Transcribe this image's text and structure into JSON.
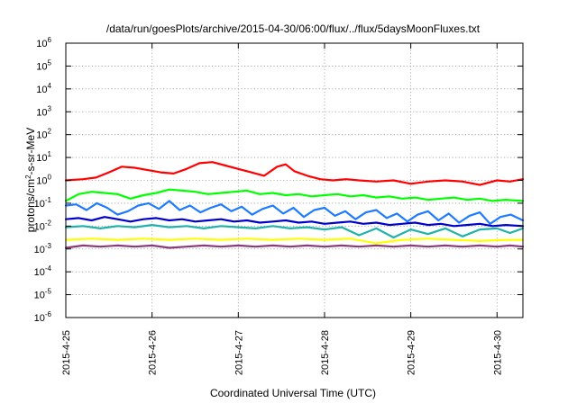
{
  "chart_data": {
    "type": "line",
    "title": "/data/run/goesPlots/archive/2015-04-30/06:00/flux/../flux/5daysMoonFluxes.txt",
    "xlabel": "Coordinated Universal Time (UTC)",
    "ylabel": {
      "prefix": "protons/cm",
      "sup": "2",
      "suffix": "-s-sr-MeV"
    },
    "x_unit": "days",
    "xlim": [
      0,
      5.3
    ],
    "ylim_log10": [
      -6,
      6
    ],
    "y_scale": "log",
    "grid": true,
    "x_ticks": [
      {
        "x": 0,
        "label": "2015-4-25"
      },
      {
        "x": 1,
        "label": "2015-4-26"
      },
      {
        "x": 2,
        "label": "2015-4-27"
      },
      {
        "x": 3,
        "label": "2015-4-28"
      },
      {
        "x": 4,
        "label": "2015-4-29"
      },
      {
        "x": 5,
        "label": "2015-4-30"
      }
    ],
    "y_ticks": [
      {
        "exp": -6,
        "base": "10",
        "sup": "-6"
      },
      {
        "exp": -5,
        "base": "10",
        "sup": "-5"
      },
      {
        "exp": -4,
        "base": "10",
        "sup": "-4"
      },
      {
        "exp": -3,
        "base": "10",
        "sup": "-3"
      },
      {
        "exp": -2,
        "base": "10",
        "sup": "-2"
      },
      {
        "exp": -1,
        "base": "10",
        "sup": "-1"
      },
      {
        "exp": 0,
        "base": "10",
        "sup": "0"
      },
      {
        "exp": 1,
        "base": "10",
        "sup": "1"
      },
      {
        "exp": 2,
        "base": "10",
        "sup": "2"
      },
      {
        "exp": 3,
        "base": "10",
        "sup": "3"
      },
      {
        "exp": 4,
        "base": "10",
        "sup": "4"
      },
      {
        "exp": 5,
        "base": "10",
        "sup": "5"
      },
      {
        "exp": 6,
        "base": "10",
        "sup": "6"
      }
    ],
    "series": [
      {
        "color": "#ff0000",
        "x": [
          0,
          0.2,
          0.35,
          0.5,
          0.65,
          0.8,
          0.95,
          1.1,
          1.25,
          1.4,
          1.55,
          1.7,
          1.85,
          2.0,
          2.15,
          2.3,
          2.45,
          2.55,
          2.65,
          2.8,
          2.95,
          3.1,
          3.25,
          3.4,
          3.6,
          3.8,
          4.0,
          4.2,
          4.4,
          4.6,
          4.8,
          5.0,
          5.15,
          5.3
        ],
        "log10y": [
          0.0,
          0.05,
          0.12,
          0.35,
          0.6,
          0.55,
          0.45,
          0.35,
          0.3,
          0.5,
          0.75,
          0.8,
          0.65,
          0.5,
          0.35,
          0.2,
          0.6,
          0.7,
          0.4,
          0.2,
          0.05,
          0.0,
          0.05,
          0.0,
          -0.05,
          0.0,
          -0.15,
          -0.05,
          0.0,
          -0.05,
          -0.2,
          0.0,
          -0.05,
          0.05
        ]
      },
      {
        "color": "#00ff00",
        "x": [
          0,
          0.15,
          0.3,
          0.45,
          0.6,
          0.75,
          0.9,
          1.05,
          1.2,
          1.35,
          1.5,
          1.65,
          1.8,
          1.95,
          2.1,
          2.25,
          2.4,
          2.55,
          2.7,
          2.85,
          3.0,
          3.15,
          3.3,
          3.45,
          3.6,
          3.75,
          3.9,
          4.05,
          4.2,
          4.35,
          4.5,
          4.65,
          4.8,
          4.95,
          5.1,
          5.3
        ],
        "log10y": [
          -0.9,
          -0.6,
          -0.5,
          -0.55,
          -0.6,
          -0.8,
          -0.65,
          -0.55,
          -0.4,
          -0.45,
          -0.5,
          -0.6,
          -0.55,
          -0.5,
          -0.45,
          -0.6,
          -0.55,
          -0.65,
          -0.6,
          -0.7,
          -0.65,
          -0.6,
          -0.7,
          -0.65,
          -0.75,
          -0.7,
          -0.8,
          -0.75,
          -0.85,
          -0.8,
          -0.75,
          -0.85,
          -0.8,
          -0.9,
          -0.85,
          -0.9
        ]
      },
      {
        "color": "#1e7bff",
        "x": [
          0,
          0.12,
          0.24,
          0.36,
          0.48,
          0.6,
          0.72,
          0.84,
          0.96,
          1.08,
          1.2,
          1.32,
          1.44,
          1.56,
          1.68,
          1.8,
          1.92,
          2.04,
          2.16,
          2.28,
          2.4,
          2.52,
          2.64,
          2.76,
          2.88,
          3.0,
          3.12,
          3.24,
          3.36,
          3.48,
          3.6,
          3.72,
          3.84,
          3.96,
          4.08,
          4.2,
          4.32,
          4.44,
          4.56,
          4.68,
          4.8,
          4.92,
          5.04,
          5.16,
          5.3
        ],
        "log10y": [
          -1.1,
          -1.05,
          -1.3,
          -1.0,
          -1.2,
          -1.5,
          -1.35,
          -1.1,
          -1.0,
          -1.25,
          -0.9,
          -1.3,
          -1.1,
          -1.4,
          -1.2,
          -1.05,
          -1.35,
          -1.15,
          -1.5,
          -1.25,
          -1.1,
          -1.45,
          -1.2,
          -1.6,
          -1.3,
          -1.2,
          -1.55,
          -1.35,
          -1.7,
          -1.4,
          -1.3,
          -1.65,
          -1.45,
          -1.8,
          -1.5,
          -1.35,
          -1.75,
          -1.45,
          -1.85,
          -1.55,
          -1.4,
          -1.9,
          -1.6,
          -1.5,
          -1.75
        ]
      },
      {
        "color": "#0000cc",
        "x": [
          0,
          0.15,
          0.3,
          0.45,
          0.6,
          0.75,
          0.9,
          1.05,
          1.2,
          1.35,
          1.5,
          1.65,
          1.8,
          1.95,
          2.1,
          2.25,
          2.4,
          2.55,
          2.7,
          2.85,
          3.0,
          3.15,
          3.3,
          3.45,
          3.6,
          3.75,
          3.9,
          4.05,
          4.2,
          4.35,
          4.5,
          4.65,
          4.8,
          4.95,
          5.1,
          5.3
        ],
        "log10y": [
          -1.7,
          -1.65,
          -1.75,
          -1.6,
          -1.7,
          -1.8,
          -1.7,
          -1.65,
          -1.75,
          -1.7,
          -1.8,
          -1.75,
          -1.7,
          -1.8,
          -1.75,
          -1.85,
          -1.8,
          -1.75,
          -1.85,
          -1.8,
          -1.9,
          -1.85,
          -1.8,
          -1.9,
          -1.85,
          -1.95,
          -1.9,
          -1.85,
          -1.95,
          -1.9,
          -2.0,
          -1.95,
          -1.9,
          -2.0,
          -1.95,
          -2.0
        ]
      },
      {
        "color": "#20b2aa",
        "x": [
          0,
          0.2,
          0.4,
          0.6,
          0.8,
          1.0,
          1.2,
          1.4,
          1.6,
          1.8,
          2.0,
          2.2,
          2.4,
          2.6,
          2.8,
          3.0,
          3.2,
          3.4,
          3.6,
          3.8,
          4.0,
          4.2,
          4.4,
          4.6,
          4.8,
          5.0,
          5.15,
          5.3
        ],
        "log10y": [
          -2.05,
          -2.0,
          -2.1,
          -2.0,
          -2.05,
          -1.95,
          -2.05,
          -2.0,
          -2.1,
          -2.0,
          -2.05,
          -2.1,
          -2.0,
          -2.1,
          -2.05,
          -2.15,
          -2.05,
          -2.4,
          -2.1,
          -2.5,
          -2.15,
          -2.35,
          -2.1,
          -2.45,
          -2.15,
          -2.1,
          -2.3,
          -2.1
        ]
      },
      {
        "color": "#ffff00",
        "x": [
          0,
          0.3,
          0.6,
          0.9,
          1.2,
          1.5,
          1.8,
          2.1,
          2.4,
          2.7,
          3.0,
          3.3,
          3.6,
          3.9,
          4.2,
          4.5,
          4.8,
          5.1,
          5.3
        ],
        "log10y": [
          -2.6,
          -2.55,
          -2.6,
          -2.55,
          -2.6,
          -2.55,
          -2.6,
          -2.55,
          -2.6,
          -2.55,
          -2.6,
          -2.55,
          -2.75,
          -2.6,
          -2.55,
          -2.6,
          -2.65,
          -2.6,
          -2.6
        ]
      },
      {
        "color": "#8b3a7a",
        "x": [
          0,
          0.2,
          0.4,
          0.6,
          0.8,
          1.0,
          1.2,
          1.4,
          1.6,
          1.8,
          2.0,
          2.2,
          2.4,
          2.6,
          2.8,
          3.0,
          3.2,
          3.4,
          3.6,
          3.8,
          4.0,
          4.2,
          4.4,
          4.6,
          4.8,
          5.0,
          5.15,
          5.3
        ],
        "log10y": [
          -2.95,
          -2.85,
          -2.9,
          -2.85,
          -2.9,
          -2.85,
          -2.95,
          -2.9,
          -2.85,
          -2.9,
          -2.85,
          -2.9,
          -2.85,
          -2.9,
          -2.85,
          -2.9,
          -2.85,
          -2.9,
          -2.85,
          -2.9,
          -2.85,
          -2.9,
          -2.85,
          -2.9,
          -2.85,
          -2.9,
          -2.85,
          -2.9
        ]
      }
    ]
  }
}
